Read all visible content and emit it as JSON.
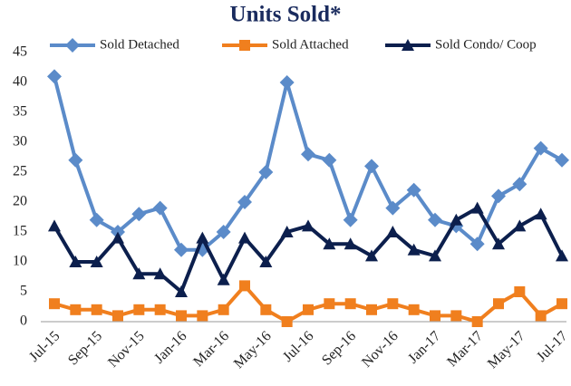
{
  "chart_data": {
    "type": "line",
    "title": "Units Sold*",
    "categories": [
      "Jul-15",
      null,
      "Sep-15",
      null,
      "Nov-15",
      null,
      "Jan-16",
      null,
      "Mar-16",
      null,
      "May-16",
      null,
      "Jul-16",
      null,
      "Sep-16",
      null,
      "Nov-16",
      null,
      "Jan-17",
      null,
      "Mar-17",
      null,
      "May-17",
      null,
      "Jul-17"
    ],
    "series": [
      {
        "name": "Sold Detached",
        "color": "#5b8bc9",
        "marker": "diamond",
        "values": [
          41,
          27,
          17,
          15,
          18,
          19,
          12,
          12,
          15,
          20,
          25,
          40,
          28,
          27,
          17,
          26,
          19,
          22,
          17,
          16,
          13,
          21,
          23,
          29,
          27
        ]
      },
      {
        "name": "Sold Attached",
        "color": "#f07f1e",
        "marker": "square",
        "values": [
          3,
          2,
          2,
          1,
          2,
          2,
          1,
          1,
          2,
          6,
          2,
          0,
          2,
          3,
          3,
          2,
          3,
          2,
          1,
          1,
          0,
          3,
          5,
          1,
          3
        ]
      },
      {
        "name": "Sold Condo/ Coop",
        "color": "#0c1f4d",
        "marker": "triangle",
        "values": [
          16,
          10,
          10,
          14,
          8,
          8,
          5,
          14,
          7,
          14,
          10,
          15,
          16,
          13,
          13,
          11,
          15,
          12,
          11,
          17,
          19,
          13,
          16,
          18,
          11
        ]
      }
    ],
    "ylim": [
      0,
      45
    ],
    "yticks": [
      0,
      5,
      10,
      15,
      20,
      25,
      30,
      35,
      40,
      45
    ],
    "grid": false,
    "legend": "top"
  }
}
